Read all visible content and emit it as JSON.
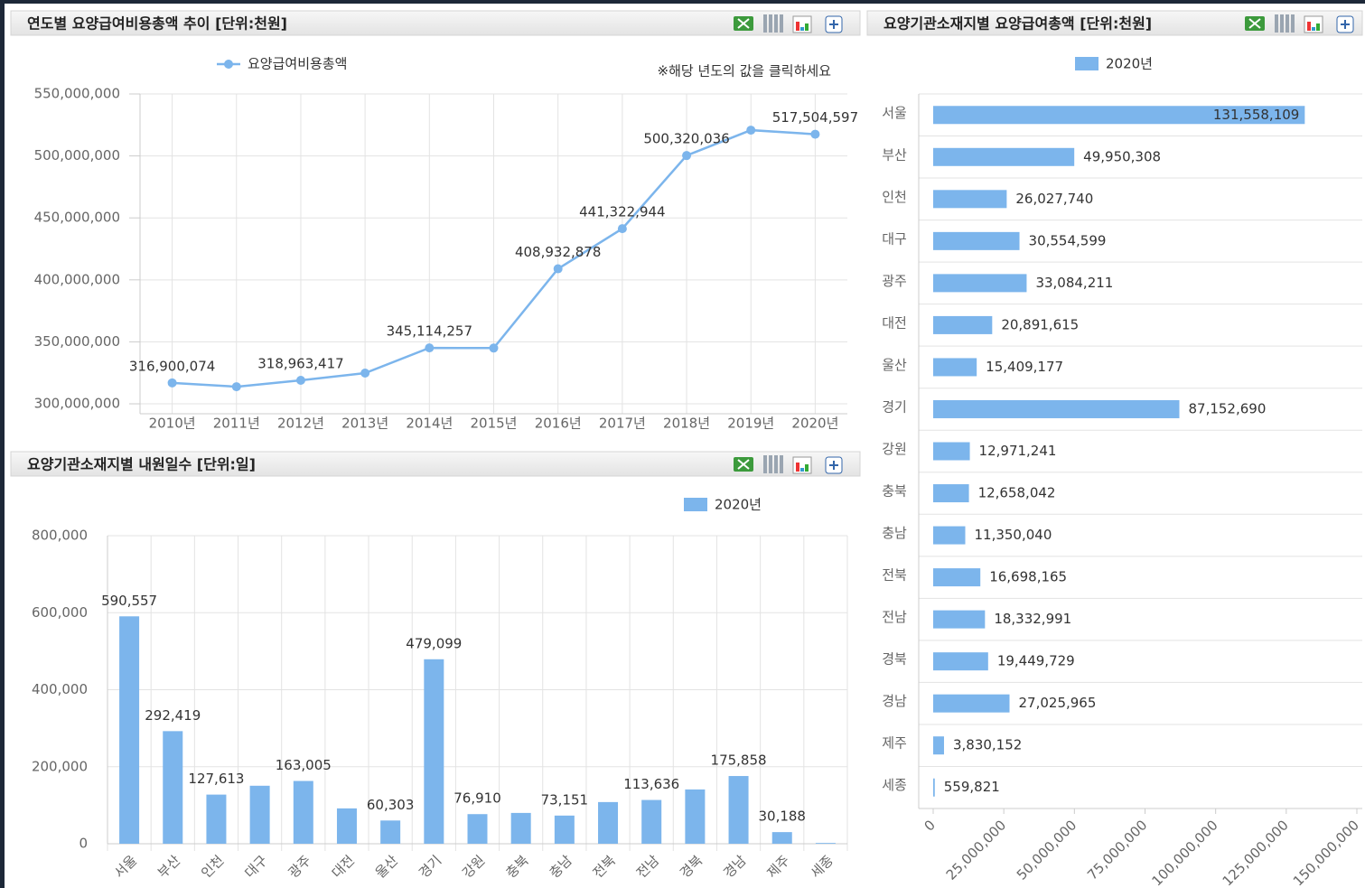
{
  "chart_data": [
    {
      "type": "line",
      "title": "연도별 요양급여비용총액 추이 [단위:천원]",
      "annotation": "※해당 년도의 값을 클릭하세요",
      "categories": [
        "2010년",
        "2011년",
        "2012년",
        "2013년",
        "2014년",
        "2015년",
        "2016년",
        "2017년",
        "2018년",
        "2019년",
        "2020년"
      ],
      "series": [
        {
          "name": "요양급여비용총액",
          "color": "#7cb5ec",
          "values": [
            316900074,
            313800000,
            318963417,
            324800000,
            345114257,
            345000000,
            408932878,
            441322944,
            500320036,
            520800000,
            517504597
          ],
          "value_labels": [
            "316,900,074",
            null,
            "318,963,417",
            null,
            "345,114,257",
            null,
            "408,932,878",
            "441,322,944",
            "500,320,036",
            null,
            "517,504,597"
          ]
        }
      ],
      "ylim": [
        292000000,
        550000000
      ],
      "yticks": [
        {
          "value": 300000000,
          "label": "300,000,000"
        },
        {
          "value": 350000000,
          "label": "350,000,000"
        },
        {
          "value": 400000000,
          "label": "400,000,000"
        },
        {
          "value": 450000000,
          "label": "450,000,000"
        },
        {
          "value": 500000000,
          "label": "500,000,000"
        },
        {
          "value": 550000000,
          "label": "550,000,000"
        }
      ],
      "grid": true
    },
    {
      "type": "bar",
      "title": "요양기관소재지별 내원일수 [단위:일]",
      "categories": [
        "서울",
        "부산",
        "인천",
        "대구",
        "광주",
        "대전",
        "울산",
        "경기",
        "강원",
        "충북",
        "충남",
        "전북",
        "전남",
        "경북",
        "경남",
        "제주",
        "세종"
      ],
      "series": [
        {
          "name": "2020년",
          "color": "#7cb5ec",
          "values": [
            590557,
            292419,
            127613,
            150600,
            163005,
            91800,
            60303,
            479099,
            76910,
            80000,
            73151,
            108200,
            113636,
            141000,
            175858,
            30188,
            2000
          ],
          "value_labels": [
            "590,557",
            "292,419",
            "127,613",
            null,
            "163,005",
            null,
            "60,303",
            "479,099",
            "76,910",
            null,
            "73,151",
            null,
            "113,636",
            null,
            "175,858",
            "30,188",
            null
          ]
        }
      ],
      "ylim": [
        0,
        800000
      ],
      "yticks": [
        0,
        {
          "value": 200000,
          "label": "200,000"
        },
        {
          "value": 400000,
          "label": "400,000"
        },
        {
          "value": 600000,
          "label": "600,000"
        },
        {
          "value": 800000,
          "label": "800,000"
        }
      ],
      "grid": true
    },
    {
      "type": "hbar",
      "title": "요양기관소재지별 요양급여총액 [단위:천원]",
      "categories": [
        "서울",
        "부산",
        "인천",
        "대구",
        "광주",
        "대전",
        "울산",
        "경기",
        "강원",
        "충북",
        "충남",
        "전북",
        "전남",
        "경북",
        "경남",
        "제주",
        "세종"
      ],
      "series": [
        {
          "name": "2020년",
          "color": "#7cb5ec",
          "values": [
            131558109,
            49950308,
            26027740,
            30554599,
            33084211,
            20891615,
            15409177,
            87152690,
            12971241,
            12658042,
            11350040,
            16698165,
            18332991,
            19449729,
            27025965,
            3830152,
            559821
          ],
          "value_labels": [
            "131,558,109",
            "49,950,308",
            "26,027,740",
            "30,554,599",
            "33,084,211",
            "20,891,615",
            "15,409,177",
            "87,152,690",
            "12,971,241",
            "12,658,042",
            "11,350,040",
            "16,698,165",
            "18,332,991",
            "19,449,729",
            "27,025,965",
            "3,830,152",
            "559,821"
          ]
        }
      ],
      "xlim": [
        0,
        150000000
      ],
      "xticks": [
        0,
        {
          "value": 25000000,
          "label": "25,000,000"
        },
        {
          "value": 50000000,
          "label": "50,000,000"
        },
        {
          "value": 75000000,
          "label": "75,000,000"
        },
        {
          "value": 100000000,
          "label": "100,000,000"
        },
        {
          "value": 125000000,
          "label": "125,000,000"
        },
        {
          "value": 150000000,
          "label": "150,000,000"
        }
      ],
      "grid": true
    }
  ]
}
